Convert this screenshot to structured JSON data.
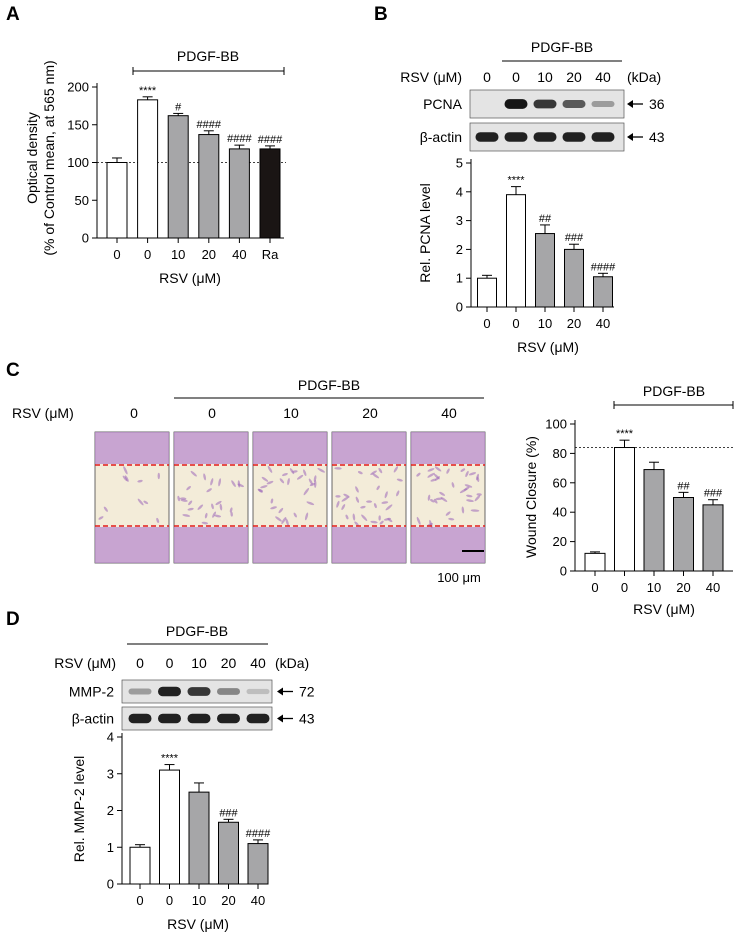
{
  "panels": {
    "A": {
      "letter": "A",
      "treatment_label": "PDGF-BB",
      "chart_data": {
        "type": "bar",
        "categories": [
          "0",
          "0",
          "10",
          "20",
          "40",
          "Ra"
        ],
        "values": [
          100,
          183,
          162,
          137,
          118,
          118
        ],
        "errors": [
          6,
          4,
          3,
          5,
          5,
          4
        ],
        "significance": [
          "",
          "****",
          "#",
          "####",
          "####",
          "####"
        ],
        "fills": [
          "#ffffff",
          "#ffffff",
          "#a6a6a8",
          "#a6a6a8",
          "#a6a6a8",
          "#1a1514"
        ],
        "ylabel_line1": "Optical density",
        "ylabel_line2": "(% of Control mean, at 565 nm)",
        "xlabel": "RSV (μM)",
        "ylim": [
          0,
          200
        ],
        "yticks": [
          0,
          50,
          100,
          150,
          200
        ],
        "reference_line": 100
      }
    },
    "B": {
      "letter": "B",
      "treatment_label": "PDGF-BB",
      "blot": {
        "rsv_label": "RSV (μM)",
        "lanes": [
          "0",
          "0",
          "10",
          "20",
          "40"
        ],
        "kda_label": "(kDa)",
        "rows": [
          {
            "name": "PCNA",
            "kda": "36",
            "intensity": [
              0.03,
              0.95,
              0.8,
              0.65,
              0.35
            ]
          },
          {
            "name": "β-actin",
            "kda": "43",
            "intensity": [
              0.9,
              0.9,
              0.9,
              0.9,
              0.9
            ]
          }
        ]
      },
      "chart_data": {
        "type": "bar",
        "categories": [
          "0",
          "0",
          "10",
          "20",
          "40"
        ],
        "values": [
          1.0,
          3.9,
          2.55,
          2.0,
          1.05
        ],
        "errors": [
          0.1,
          0.28,
          0.3,
          0.18,
          0.12
        ],
        "significance": [
          "",
          "****",
          "##",
          "###",
          "####"
        ],
        "fills": [
          "#ffffff",
          "#ffffff",
          "#a6a6a8",
          "#a6a6a8",
          "#a6a6a8"
        ],
        "ylabel": "Rel. PCNA level",
        "xlabel": "RSV (μM)",
        "ylim": [
          0,
          5
        ],
        "yticks": [
          0,
          1,
          2,
          3,
          4,
          5
        ]
      }
    },
    "C": {
      "letter": "C",
      "treatment_label": "PDGF-BB",
      "rsv_label": "RSV (μM)",
      "image_labels": [
        "0",
        "0",
        "10",
        "20",
        "40"
      ],
      "scale_bar_label": "100 μm",
      "chart_data": {
        "type": "bar",
        "categories": [
          "0",
          "0",
          "10",
          "20",
          "40"
        ],
        "values": [
          12,
          84,
          69,
          50,
          45
        ],
        "errors": [
          1,
          5,
          5,
          3.5,
          3.5
        ],
        "significance": [
          "",
          "****",
          "",
          "##",
          "###"
        ],
        "fills": [
          "#ffffff",
          "#ffffff",
          "#a6a6a8",
          "#a6a6a8",
          "#a6a6a8"
        ],
        "ylabel": "Wound Closure (%)",
        "xlabel": "RSV (μM)",
        "ylim": [
          0,
          100
        ],
        "yticks": [
          0,
          20,
          40,
          60,
          80,
          100
        ],
        "reference_line": 84
      }
    },
    "D": {
      "letter": "D",
      "treatment_label": "PDGF-BB",
      "blot": {
        "rsv_label": "RSV (μM)",
        "lanes": [
          "0",
          "0",
          "10",
          "20",
          "40"
        ],
        "kda_label": "(kDa)",
        "rows": [
          {
            "name": "MMP-2",
            "kda": "72",
            "intensity": [
              0.35,
              0.9,
              0.8,
              0.45,
              0.2
            ]
          },
          {
            "name": "β-actin",
            "kda": "43",
            "intensity": [
              0.9,
              0.9,
              0.9,
              0.9,
              0.9
            ]
          }
        ]
      },
      "chart_data": {
        "type": "bar",
        "categories": [
          "0",
          "0",
          "10",
          "20",
          "40"
        ],
        "values": [
          1.0,
          3.1,
          2.5,
          1.68,
          1.1
        ],
        "errors": [
          0.07,
          0.15,
          0.25,
          0.08,
          0.1
        ],
        "significance": [
          "",
          "****",
          "",
          "###",
          "####"
        ],
        "fills": [
          "#ffffff",
          "#ffffff",
          "#a6a6a8",
          "#a6a6a8",
          "#a6a6a8"
        ],
        "ylabel": "Rel. MMP-2 level",
        "xlabel": "RSV (μM)",
        "ylim": [
          0,
          4
        ],
        "yticks": [
          0,
          1,
          2,
          3,
          4
        ]
      }
    }
  }
}
